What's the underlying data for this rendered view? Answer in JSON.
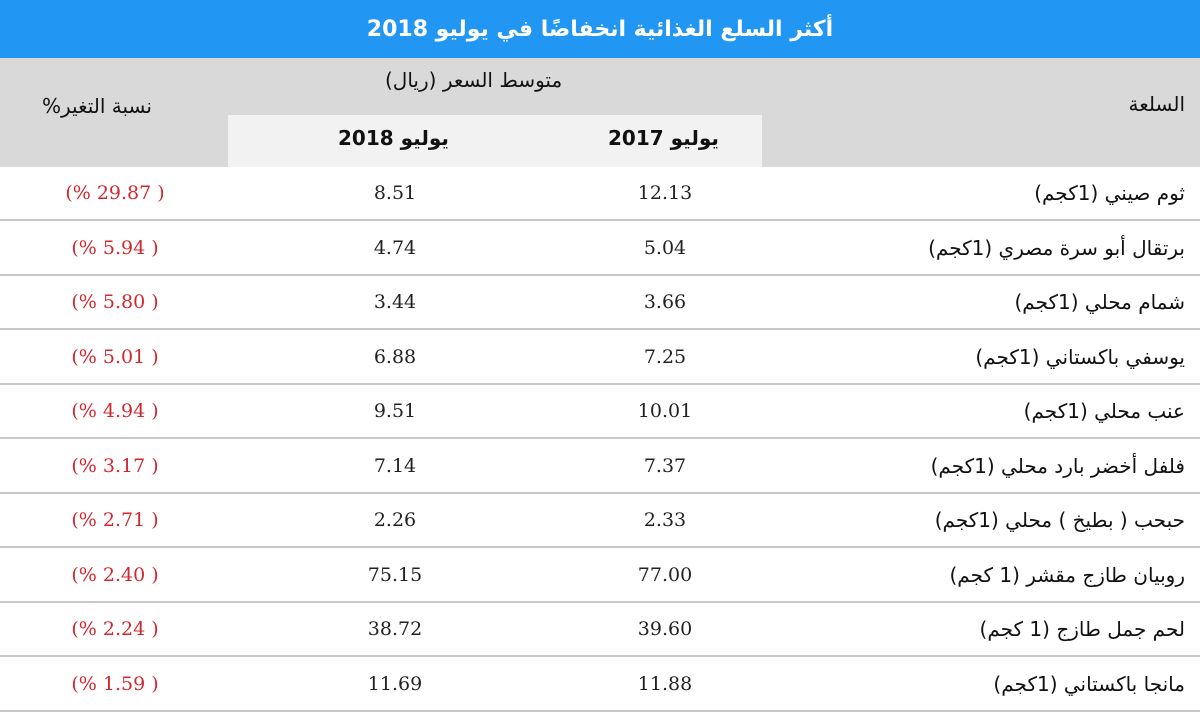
{
  "title": "أكثر السلع الغذائية انخفاضًا في يوليو 2018",
  "header": {
    "item": "السلعة",
    "avg_price": "متوسط السعر (ريال)",
    "col_2017": "يوليو 2017",
    "col_2018": "يوليو 2018",
    "change": "نسبة التغير%"
  },
  "colors": {
    "title_bg": "#2196f3",
    "header_bg": "#d9d9d9",
    "change_text": "#d0282e"
  },
  "rows": [
    {
      "item": "ثوم صيني (1كجم)",
      "jul2017": "12.13",
      "jul2018": "8.51",
      "change": "(% 29.87 )"
    },
    {
      "item": "برتقال أبو سرة مصري (1كجم)",
      "jul2017": "5.04",
      "jul2018": "4.74",
      "change": "(% 5.94 )"
    },
    {
      "item": "شمام محلي (1كجم)",
      "jul2017": "3.66",
      "jul2018": "3.44",
      "change": "(% 5.80 )"
    },
    {
      "item": "يوسفي باكستاني (1كجم)",
      "jul2017": "7.25",
      "jul2018": "6.88",
      "change": "(% 5.01 )"
    },
    {
      "item": "عنب محلي (1كجم)",
      "jul2017": "10.01",
      "jul2018": "9.51",
      "change": "(% 4.94 )"
    },
    {
      "item": "فلفل أخضر بارد محلي (1كجم)",
      "jul2017": "7.37",
      "jul2018": "7.14",
      "change": "(% 3.17 )"
    },
    {
      "item": "حبحب ( بطيخ ) محلي (1كجم)",
      "jul2017": "2.33",
      "jul2018": "2.26",
      "change": "(% 2.71 )"
    },
    {
      "item": "روبيان طازج مقشر (1 كجم)",
      "jul2017": "77.00",
      "jul2018": "75.15",
      "change": "(% 2.40 )"
    },
    {
      "item": "لحم جمل طازج (1 كجم)",
      "jul2017": "39.60",
      "jul2018": "38.72",
      "change": "(% 2.24 )"
    },
    {
      "item": "مانجا باكستاني (1كجم)",
      "jul2017": "11.88",
      "jul2018": "11.69",
      "change": "(% 1.59 )"
    }
  ]
}
